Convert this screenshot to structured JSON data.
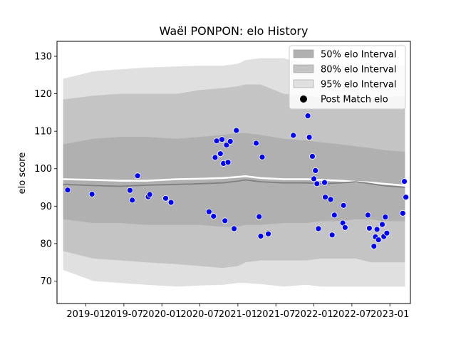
{
  "chart_data": {
    "type": "scatter",
    "title": "Waël PONPON: elo History",
    "xlabel": "",
    "ylabel": "elo score",
    "xlim": [
      2018.62,
      2023.27
    ],
    "ylim": [
      64,
      134
    ],
    "x_ticks": [
      2019.0,
      2019.5,
      2020.0,
      2020.5,
      2021.0,
      2021.5,
      2022.0,
      2022.5,
      2023.0
    ],
    "x_tick_labels": [
      "2019-01",
      "2019-07",
      "2020-01",
      "2020-07",
      "2021-01",
      "2021-07",
      "2022-01",
      "2022-07",
      "2023-01"
    ],
    "y_ticks": [
      70,
      80,
      90,
      100,
      110,
      120,
      130
    ],
    "legend": {
      "location": "top-right",
      "entries": [
        "50% elo Interval",
        "80% elo Interval",
        "95% elo Interval",
        "Post Match elo"
      ]
    },
    "colors": {
      "band50": "#b0b0b0",
      "band80": "#c4c4c4",
      "band95": "#e0e0e0",
      "mean_line": "#808080",
      "median_line": "#ffffff",
      "points": "#0000ff"
    },
    "bands": {
      "x": [
        2018.7,
        2019.1,
        2019.45,
        2019.8,
        2020.2,
        2020.5,
        2020.8,
        2021.0,
        2021.1,
        2021.3,
        2021.6,
        2021.9,
        2022.1,
        2022.35,
        2022.55,
        2022.75,
        2022.9,
        2023.2
      ],
      "lo95": [
        73.0,
        70.0,
        69.5,
        69.0,
        68.5,
        68.8,
        69.0,
        69.5,
        69.5,
        69.2,
        68.5,
        69.0,
        68.5,
        68.5,
        68.5,
        68.5,
        68.5,
        68.5
      ],
      "hi95": [
        124.0,
        126.0,
        126.5,
        127.0,
        127.3,
        127.5,
        127.5,
        128.0,
        129.0,
        129.5,
        129.5,
        128.0,
        127.5,
        127.5,
        127.5,
        127.5,
        127.5,
        127.5
      ],
      "lo80": [
        78.0,
        76.0,
        75.5,
        75.0,
        74.5,
        74.0,
        73.5,
        74.0,
        75.0,
        75.5,
        75.5,
        75.5,
        76.0,
        76.0,
        76.0,
        75.0,
        75.0,
        75.0
      ],
      "hi80": [
        118.5,
        119.5,
        120.0,
        120.0,
        120.0,
        121.0,
        121.5,
        122.0,
        122.5,
        122.5,
        120.0,
        119.5,
        119.0,
        118.5,
        118.5,
        119.0,
        119.0,
        119.5
      ],
      "lo50": [
        86.5,
        85.5,
        85.5,
        85.0,
        85.0,
        85.0,
        84.5,
        84.5,
        85.0,
        85.0,
        85.5,
        85.5,
        86.0,
        86.0,
        86.5,
        86.5,
        86.0,
        86.0
      ],
      "hi50": [
        106.5,
        108.0,
        108.5,
        108.5,
        108.0,
        108.5,
        109.0,
        109.5,
        109.5,
        109.0,
        108.0,
        107.5,
        107.0,
        106.5,
        106.0,
        105.5,
        105.0,
        104.5
      ],
      "mean": [
        95.8,
        95.5,
        95.3,
        95.6,
        95.8,
        96.0,
        96.2,
        96.7,
        97.0,
        96.5,
        96.2,
        96.2,
        96.0,
        96.2,
        96.5,
        96.0,
        95.5,
        95.0
      ],
      "median": [
        97.2,
        97.0,
        96.8,
        96.8,
        97.2,
        97.3,
        97.5,
        97.8,
        98.0,
        97.5,
        97.2,
        97.2,
        97.0,
        96.8,
        96.5,
        96.3,
        96.0,
        95.5
      ]
    },
    "points": [
      {
        "x": 2018.76,
        "y": 94.3
      },
      {
        "x": 2019.08,
        "y": 93.2
      },
      {
        "x": 2019.58,
        "y": 94.2
      },
      {
        "x": 2019.61,
        "y": 91.6
      },
      {
        "x": 2019.68,
        "y": 98.1
      },
      {
        "x": 2019.82,
        "y": 92.5
      },
      {
        "x": 2019.84,
        "y": 93.1
      },
      {
        "x": 2020.05,
        "y": 92.1
      },
      {
        "x": 2020.12,
        "y": 91.0
      },
      {
        "x": 2020.62,
        "y": 88.5
      },
      {
        "x": 2020.68,
        "y": 87.3
      },
      {
        "x": 2020.7,
        "y": 103.0
      },
      {
        "x": 2020.72,
        "y": 107.4
      },
      {
        "x": 2020.77,
        "y": 104.0
      },
      {
        "x": 2020.79,
        "y": 107.8
      },
      {
        "x": 2020.81,
        "y": 101.4
      },
      {
        "x": 2020.83,
        "y": 86.1
      },
      {
        "x": 2020.85,
        "y": 106.3
      },
      {
        "x": 2020.87,
        "y": 101.7
      },
      {
        "x": 2020.9,
        "y": 107.3
      },
      {
        "x": 2020.95,
        "y": 84.0
      },
      {
        "x": 2020.98,
        "y": 110.2
      },
      {
        "x": 2021.24,
        "y": 106.8
      },
      {
        "x": 2021.28,
        "y": 87.2
      },
      {
        "x": 2021.3,
        "y": 82.0
      },
      {
        "x": 2021.32,
        "y": 103.1
      },
      {
        "x": 2021.4,
        "y": 82.6
      },
      {
        "x": 2021.73,
        "y": 108.9
      },
      {
        "x": 2021.92,
        "y": 114.1
      },
      {
        "x": 2021.94,
        "y": 108.4
      },
      {
        "x": 2021.98,
        "y": 103.3
      },
      {
        "x": 2022.0,
        "y": 97.3
      },
      {
        "x": 2022.02,
        "y": 99.5
      },
      {
        "x": 2022.04,
        "y": 96.0
      },
      {
        "x": 2022.06,
        "y": 84.0
      },
      {
        "x": 2022.14,
        "y": 96.3
      },
      {
        "x": 2022.15,
        "y": 92.4
      },
      {
        "x": 2022.22,
        "y": 91.8
      },
      {
        "x": 2022.24,
        "y": 82.3
      },
      {
        "x": 2022.27,
        "y": 87.6
      },
      {
        "x": 2022.38,
        "y": 85.5
      },
      {
        "x": 2022.39,
        "y": 90.2
      },
      {
        "x": 2022.41,
        "y": 84.3
      },
      {
        "x": 2022.71,
        "y": 87.6
      },
      {
        "x": 2022.73,
        "y": 84.1
      },
      {
        "x": 2022.79,
        "y": 79.3
      },
      {
        "x": 2022.81,
        "y": 81.8
      },
      {
        "x": 2022.83,
        "y": 83.8
      },
      {
        "x": 2022.85,
        "y": 81.0
      },
      {
        "x": 2022.9,
        "y": 85.1
      },
      {
        "x": 2022.92,
        "y": 81.9
      },
      {
        "x": 2022.94,
        "y": 87.1
      },
      {
        "x": 2022.96,
        "y": 82.8
      },
      {
        "x": 2023.17,
        "y": 88.1
      },
      {
        "x": 2023.19,
        "y": 96.6
      },
      {
        "x": 2023.21,
        "y": 92.4
      }
    ]
  }
}
